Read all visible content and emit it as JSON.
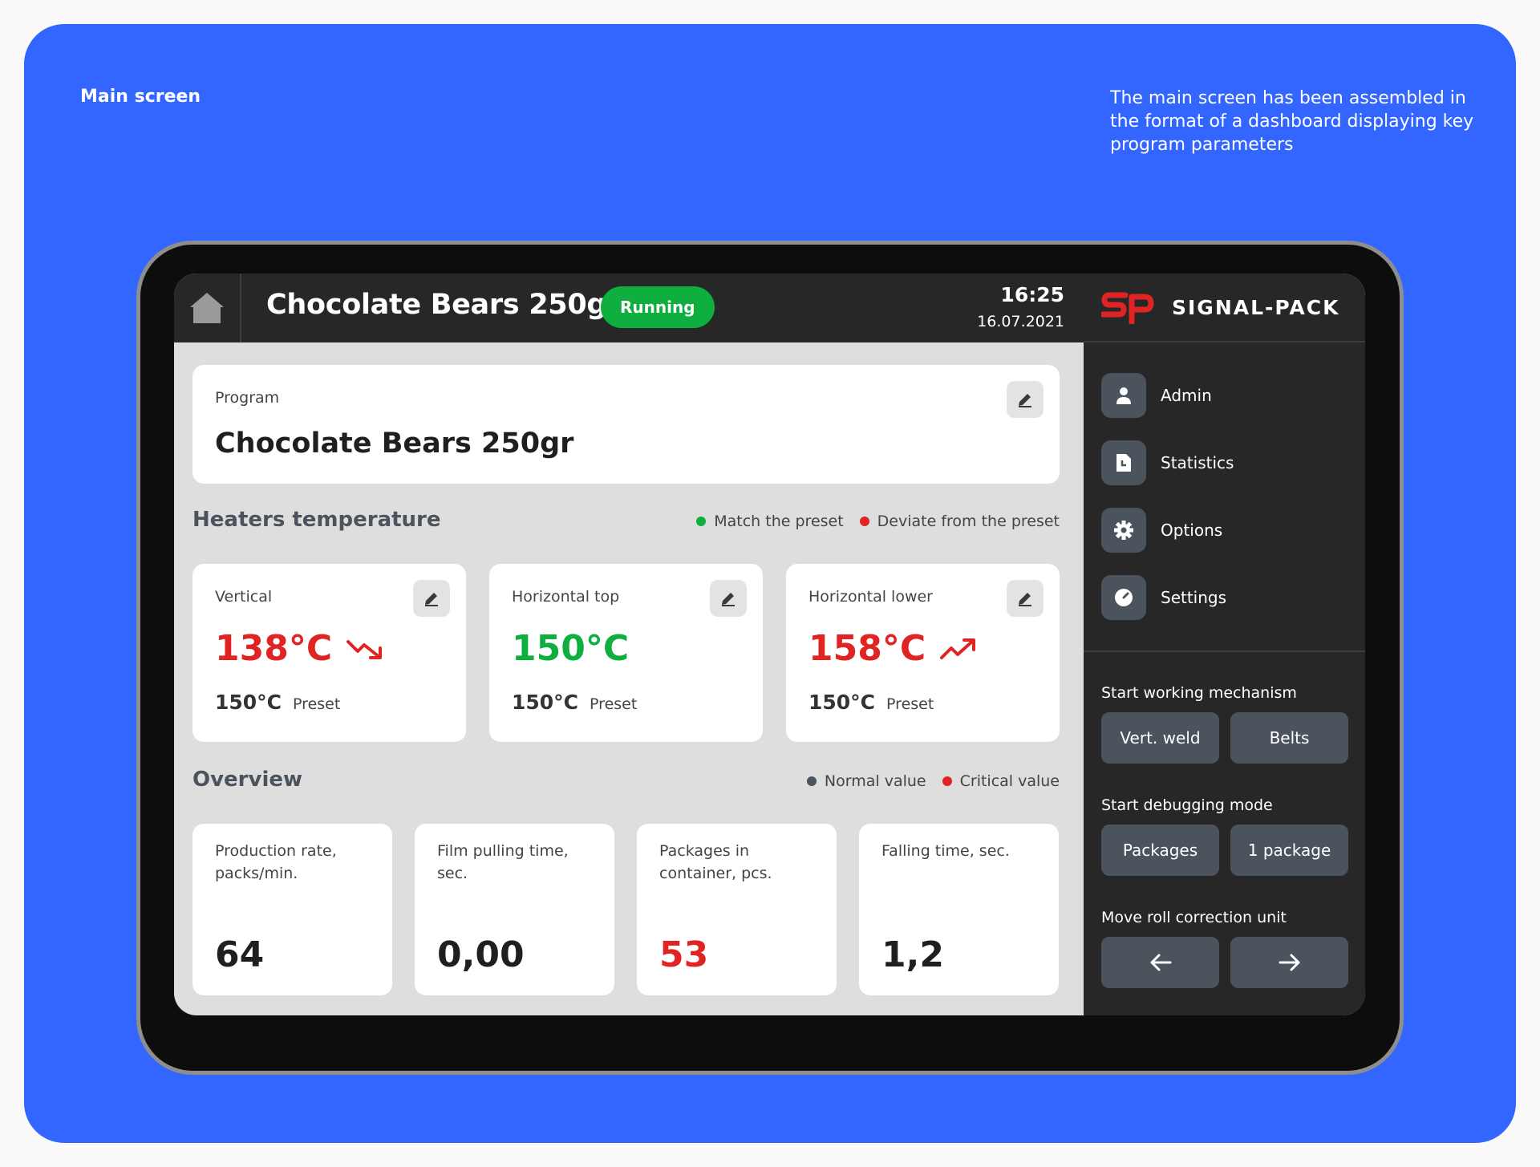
{
  "captions": {
    "left": "Main screen",
    "right": "The main screen has been assembled in the format of a dashboard displaying key program parameters"
  },
  "header": {
    "program_title": "Chocolate Bears 250gr",
    "status": "Running",
    "time": "16:25",
    "date": "16.07.2021",
    "home_icon": "home-icon"
  },
  "brand": {
    "name": "SIGNAL-PACK",
    "logo_icon": "signal-pack-logo"
  },
  "nav": [
    {
      "label": "Admin",
      "icon": "user-icon"
    },
    {
      "label": "Statistics",
      "icon": "document-icon"
    },
    {
      "label": "Options",
      "icon": "gear-icon"
    },
    {
      "label": "Settings",
      "icon": "gauge-icon"
    }
  ],
  "controls": {
    "working": {
      "label": "Start working mechanism",
      "buttons": [
        "Vert. weld",
        "Belts"
      ]
    },
    "debugging": {
      "label": "Start debugging mode",
      "buttons": [
        "Packages",
        "1 package"
      ]
    },
    "roll": {
      "label": "Move roll correction unit",
      "buttons": [
        "arrow-left-icon",
        "arrow-right-icon"
      ]
    }
  },
  "program_card": {
    "label": "Program",
    "value": "Chocolate Bears 250gr"
  },
  "heaters": {
    "title": "Heaters temperature",
    "legend": [
      {
        "label": "Match the preset",
        "color": "#0eae3f"
      },
      {
        "label": "Deviate from the preset",
        "color": "#e02424"
      }
    ],
    "preset_label": "Preset",
    "items": [
      {
        "name": "Vertical",
        "value": "138°C",
        "preset": "150°C",
        "state": "deviate",
        "trend": "down",
        "color": "#e02424"
      },
      {
        "name": "Horizontal top",
        "value": "150°C",
        "preset": "150°C",
        "state": "match",
        "trend": "none",
        "color": "#0eae3f"
      },
      {
        "name": "Horizontal lower",
        "value": "158°C",
        "preset": "150°C",
        "state": "deviate",
        "trend": "up",
        "color": "#e02424"
      }
    ]
  },
  "overview": {
    "title": "Overview",
    "legend": [
      {
        "label": "Normal value",
        "color": "#4b535c"
      },
      {
        "label": "Critical value",
        "color": "#e02424"
      }
    ],
    "items": [
      {
        "label": "Production rate, packs/min.",
        "value": "64",
        "state": "normal"
      },
      {
        "label": "Film pulling time, sec.",
        "value": "0,00",
        "state": "normal"
      },
      {
        "label": "Packages in container, pcs.",
        "value": "53",
        "state": "critical"
      },
      {
        "label": "Falling time, sec.",
        "value": "1,2",
        "state": "normal"
      }
    ]
  },
  "colors": {
    "accent": "#3366ff",
    "ok": "#0eae3f",
    "critical": "#e02424",
    "panel": "#272727",
    "button": "#4b535c"
  }
}
